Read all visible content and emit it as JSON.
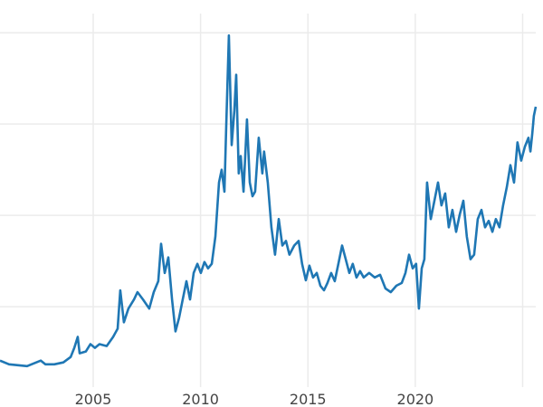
{
  "chart_data": {
    "type": "line",
    "title": "",
    "xlabel": "",
    "ylabel": "",
    "xlim": [
      2000.66,
      2025.61
    ],
    "ylim": [
      1.2,
      42.1
    ],
    "x_ticks": [
      2005,
      2010,
      2015,
      2020,
      2025
    ],
    "x_tick_labels": [
      "2005",
      "2010",
      "2015",
      "2020",
      ""
    ],
    "y_gridlines": [
      10,
      20,
      30,
      40
    ],
    "y_tick_labels_visible": false,
    "grid": true,
    "color": "#1f77b4",
    "x": [
      2000.66,
      2001.08,
      2001.5,
      2001.92,
      2002.35,
      2002.56,
      2002.77,
      2003.19,
      2003.61,
      2003.95,
      2004.12,
      2004.28,
      2004.37,
      2004.66,
      2004.87,
      2005.08,
      2005.29,
      2005.63,
      2005.93,
      2006.14,
      2006.26,
      2006.43,
      2006.64,
      2006.9,
      2007.06,
      2007.32,
      2007.61,
      2007.82,
      2008.03,
      2008.16,
      2008.33,
      2008.5,
      2008.67,
      2008.83,
      2009.0,
      2009.17,
      2009.34,
      2009.51,
      2009.68,
      2009.85,
      2010.01,
      2010.18,
      2010.35,
      2010.52,
      2010.69,
      2010.86,
      2010.98,
      2011.11,
      2011.19,
      2011.32,
      2011.45,
      2011.57,
      2011.66,
      2011.78,
      2011.87,
      2012.0,
      2012.16,
      2012.29,
      2012.42,
      2012.54,
      2012.71,
      2012.88,
      2012.96,
      2013.13,
      2013.3,
      2013.47,
      2013.64,
      2013.81,
      2013.98,
      2014.14,
      2014.36,
      2014.57,
      2014.73,
      2014.9,
      2015.07,
      2015.24,
      2015.41,
      2015.58,
      2015.75,
      2015.91,
      2016.08,
      2016.25,
      2016.42,
      2016.59,
      2016.76,
      2016.93,
      2017.09,
      2017.26,
      2017.43,
      2017.6,
      2017.85,
      2018.11,
      2018.36,
      2018.61,
      2018.86,
      2019.12,
      2019.37,
      2019.54,
      2019.71,
      2019.88,
      2020.04,
      2020.17,
      2020.3,
      2020.42,
      2020.55,
      2020.72,
      2020.89,
      2021.06,
      2021.22,
      2021.39,
      2021.56,
      2021.73,
      2021.9,
      2022.07,
      2022.24,
      2022.4,
      2022.57,
      2022.74,
      2022.91,
      2023.08,
      2023.25,
      2023.42,
      2023.59,
      2023.75,
      2023.92,
      2024.09,
      2024.26,
      2024.43,
      2024.6,
      2024.76,
      2024.93,
      2025.1,
      2025.27,
      2025.36,
      2025.45,
      2025.52,
      2025.61
    ],
    "y": [
      4.1,
      3.7,
      3.6,
      3.5,
      3.9,
      4.1,
      3.7,
      3.7,
      3.9,
      4.5,
      5.5,
      6.7,
      4.9,
      5.1,
      5.9,
      5.5,
      5.9,
      5.7,
      6.7,
      7.6,
      11.8,
      8.3,
      9.8,
      10.8,
      11.6,
      10.8,
      9.8,
      11.6,
      12.8,
      16.9,
      13.7,
      15.4,
      10.8,
      7.3,
      8.8,
      10.8,
      12.8,
      10.8,
      13.7,
      14.7,
      13.7,
      14.9,
      14.2,
      14.7,
      17.7,
      23.6,
      25.0,
      22.6,
      29.5,
      39.7,
      27.7,
      31.4,
      35.4,
      24.6,
      26.5,
      22.6,
      30.5,
      23.6,
      22.1,
      22.6,
      28.5,
      24.6,
      27.0,
      23.6,
      18.7,
      15.7,
      19.6,
      16.7,
      17.2,
      15.7,
      16.7,
      17.2,
      14.7,
      12.9,
      14.5,
      13.2,
      13.7,
      12.3,
      11.8,
      12.6,
      13.7,
      12.8,
      14.7,
      16.7,
      15.2,
      13.7,
      14.7,
      13.2,
      13.9,
      13.2,
      13.7,
      13.2,
      13.5,
      12.0,
      11.6,
      12.3,
      12.6,
      13.7,
      15.7,
      14.2,
      14.7,
      9.8,
      14.2,
      15.2,
      23.6,
      19.6,
      21.6,
      23.6,
      21.1,
      22.4,
      18.7,
      20.6,
      18.2,
      20.1,
      21.6,
      17.7,
      15.2,
      15.7,
      19.6,
      20.6,
      18.7,
      19.4,
      18.2,
      19.6,
      18.7,
      21.1,
      23.1,
      25.5,
      23.6,
      28.0,
      26.0,
      27.5,
      28.5,
      27.0,
      29.0,
      30.9,
      31.9
    ]
  }
}
